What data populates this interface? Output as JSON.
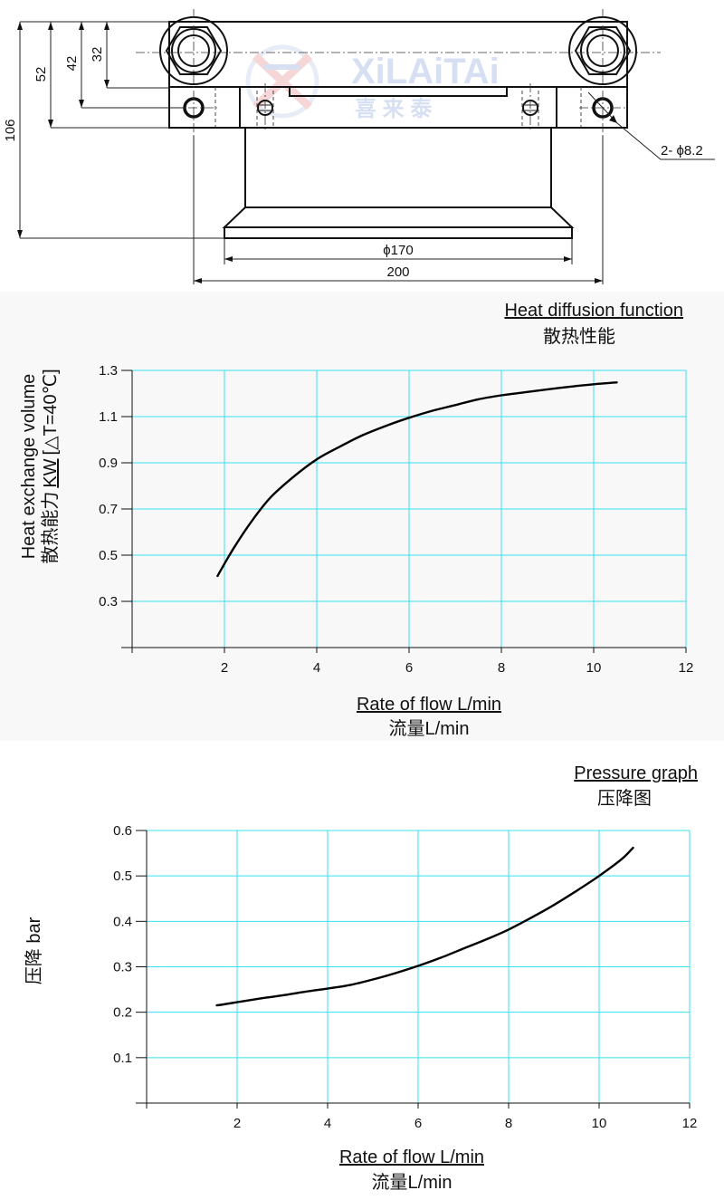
{
  "drawing": {
    "dimensions": {
      "d106": "106",
      "d52": "52",
      "d42": "42",
      "d32": "32",
      "width": "200",
      "diameter": "ϕ170",
      "holes": "2- ϕ8.2"
    },
    "watermark": {
      "brand": "XiLAiTAi",
      "chinese": "喜 来 泰"
    }
  },
  "chart_data": [
    {
      "type": "line",
      "title": "Heat diffusion function",
      "subtitle": "散热性能",
      "xlabel": "Rate of flow L/min",
      "xlabel_zh": "流量L/min",
      "ylabel": "Heat exchange volume",
      "ylabel_zh": "散热能力",
      "ylabel_unit": "KW",
      "ylabel_note": "[△T=40℃]",
      "xlim": [
        0,
        12
      ],
      "ylim": [
        0.1,
        1.3
      ],
      "x_ticks": [
        2,
        4,
        6,
        8,
        10,
        12
      ],
      "y_ticks": [
        "0.3",
        "0.5",
        "0.7",
        "0.9",
        "1.1",
        "1.3"
      ],
      "grid": true,
      "series": [
        {
          "x": [
            1.85,
            2.2,
            2.6,
            3.0,
            3.5,
            4.0,
            4.5,
            5.0,
            5.5,
            6.0,
            6.5,
            7.0,
            7.5,
            8.0,
            8.5,
            9.0,
            9.5,
            10.0,
            10.5
          ],
          "y": [
            0.41,
            0.53,
            0.65,
            0.75,
            0.84,
            0.915,
            0.97,
            1.02,
            1.06,
            1.095,
            1.125,
            1.15,
            1.175,
            1.192,
            1.205,
            1.218,
            1.23,
            1.24,
            1.248
          ]
        }
      ]
    },
    {
      "type": "line",
      "title": "Pressure graph",
      "subtitle": "压降图",
      "xlabel": "Rate of flow L/min",
      "xlabel_zh": "流量L/min",
      "ylabel": "压降 bar",
      "xlim": [
        0,
        12
      ],
      "ylim": [
        0,
        0.6
      ],
      "x_ticks": [
        2,
        4,
        6,
        8,
        10,
        12
      ],
      "y_ticks": [
        "0.1",
        "0.2",
        "0.3",
        "0.4",
        "0.5",
        "0.6"
      ],
      "grid": true,
      "series": [
        {
          "x": [
            1.55,
            2.0,
            2.5,
            3.0,
            3.5,
            4.0,
            4.5,
            5.0,
            5.5,
            6.0,
            6.5,
            7.0,
            7.5,
            8.0,
            8.5,
            9.0,
            9.5,
            10.0,
            10.5,
            10.75
          ],
          "y": [
            0.215,
            0.222,
            0.23,
            0.237,
            0.245,
            0.252,
            0.26,
            0.272,
            0.286,
            0.302,
            0.32,
            0.34,
            0.36,
            0.382,
            0.408,
            0.436,
            0.467,
            0.5,
            0.537,
            0.562
          ]
        }
      ]
    }
  ]
}
